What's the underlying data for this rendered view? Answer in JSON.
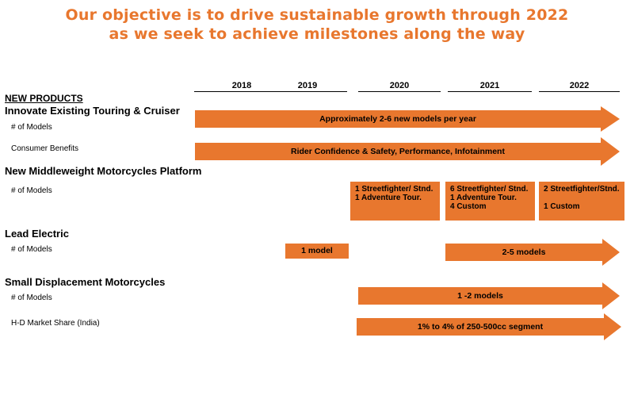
{
  "headline": {
    "line1": "Our objective is to drive sustainable growth through 2022",
    "line2": "as we seek to achieve milestones along the way"
  },
  "years": [
    "2018",
    "2019",
    "2020",
    "2021",
    "2022"
  ],
  "colors": {
    "accent": "#e8772e"
  },
  "new_products_heading": "NEW PRODUCTS",
  "touring": {
    "title": "Innovate Existing Touring & Cruiser",
    "models_label": "# of Models",
    "models_bar": "Approximately 2-6 new models per year",
    "benefits_label": "Consumer Benefits",
    "benefits_bar": "Rider Confidence & Safety, Performance, Infotainment"
  },
  "middleweight": {
    "title": "New Middleweight Motorcycles Platform",
    "models_label": "# of Models",
    "box_2020": [
      "1 Streetfighter/ Stnd.",
      "1 Adventure Tour."
    ],
    "box_2021": [
      "6 Streetfighter/ Stnd.",
      "1 Adventure Tour.",
      "4 Custom"
    ],
    "box_2022": [
      "2 Streetfighter/Stnd.",
      "1 Custom"
    ]
  },
  "electric": {
    "title": "Lead Electric",
    "models_label": "# of Models",
    "box_2019": "1 model",
    "bar_2021": "2-5 models"
  },
  "small": {
    "title": "Small Displacement Motorcycles",
    "models_label": "# of Models",
    "models_bar": "1 -2 models",
    "share_label": "H-D Market Share (India)",
    "share_bar": "1% to 4% of 250-500cc segment"
  }
}
